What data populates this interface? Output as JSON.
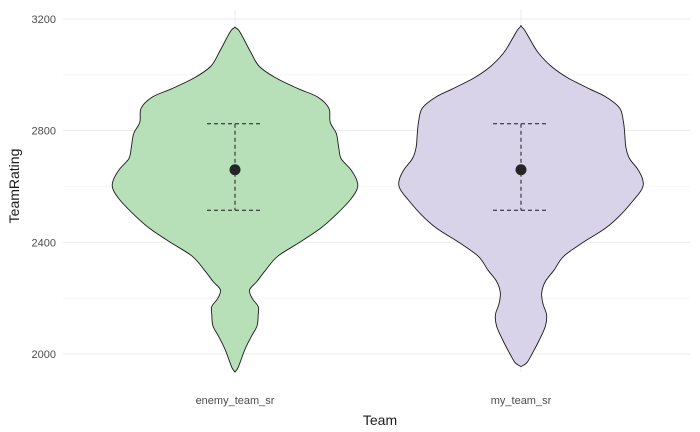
{
  "chart_data": {
    "type": "violin",
    "title": "",
    "xlabel": "Team",
    "ylabel": "TeamRating",
    "categories": [
      "enemy_team_sr",
      "my_team_sr"
    ],
    "ylim": [
      1930,
      3200
    ],
    "yticks": [
      2000,
      2400,
      2800,
      3200
    ],
    "grid": true,
    "legend": "none",
    "series": [
      {
        "category": "enemy_team_sr",
        "fill": "#b8e0b8",
        "mean": 2660,
        "lower": 2515,
        "upper": 2825,
        "min": 1935,
        "max": 3170,
        "profile": [
          [
            1935,
            0.0
          ],
          [
            1950,
            0.024
          ],
          [
            1980,
            0.05
          ],
          [
            2020,
            0.085
          ],
          [
            2060,
            0.13
          ],
          [
            2100,
            0.18
          ],
          [
            2140,
            0.19
          ],
          [
            2170,
            0.19
          ],
          [
            2200,
            0.14
          ],
          [
            2230,
            0.12
          ],
          [
            2260,
            0.18
          ],
          [
            2300,
            0.25
          ],
          [
            2350,
            0.35
          ],
          [
            2400,
            0.53
          ],
          [
            2450,
            0.7
          ],
          [
            2500,
            0.83
          ],
          [
            2550,
            0.94
          ],
          [
            2590,
            1.0
          ],
          [
            2620,
            1.0
          ],
          [
            2660,
            0.95
          ],
          [
            2700,
            0.87
          ],
          [
            2740,
            0.85
          ],
          [
            2790,
            0.83
          ],
          [
            2830,
            0.78
          ],
          [
            2880,
            0.77
          ],
          [
            2920,
            0.68
          ],
          [
            2950,
            0.52
          ],
          [
            2990,
            0.33
          ],
          [
            3030,
            0.2
          ],
          [
            3080,
            0.13
          ],
          [
            3130,
            0.07
          ],
          [
            3160,
            0.03
          ],
          [
            3170,
            0.0
          ]
        ]
      },
      {
        "category": "my_team_sr",
        "fill": "#d9d3ea",
        "mean": 2660,
        "lower": 2515,
        "upper": 2825,
        "min": 1955,
        "max": 3175,
        "profile": [
          [
            1955,
            0.0
          ],
          [
            1970,
            0.05
          ],
          [
            2000,
            0.09
          ],
          [
            2050,
            0.15
          ],
          [
            2100,
            0.2
          ],
          [
            2140,
            0.21
          ],
          [
            2180,
            0.18
          ],
          [
            2220,
            0.17
          ],
          [
            2260,
            0.2
          ],
          [
            2300,
            0.27
          ],
          [
            2350,
            0.35
          ],
          [
            2400,
            0.51
          ],
          [
            2450,
            0.69
          ],
          [
            2500,
            0.82
          ],
          [
            2550,
            0.92
          ],
          [
            2590,
            0.99
          ],
          [
            2620,
            1.0
          ],
          [
            2660,
            0.96
          ],
          [
            2700,
            0.89
          ],
          [
            2740,
            0.86
          ],
          [
            2790,
            0.85
          ],
          [
            2830,
            0.84
          ],
          [
            2880,
            0.81
          ],
          [
            2920,
            0.7
          ],
          [
            2950,
            0.56
          ],
          [
            2990,
            0.38
          ],
          [
            3030,
            0.25
          ],
          [
            3080,
            0.14
          ],
          [
            3130,
            0.07
          ],
          [
            3160,
            0.03
          ],
          [
            3175,
            0.0
          ]
        ]
      }
    ]
  }
}
